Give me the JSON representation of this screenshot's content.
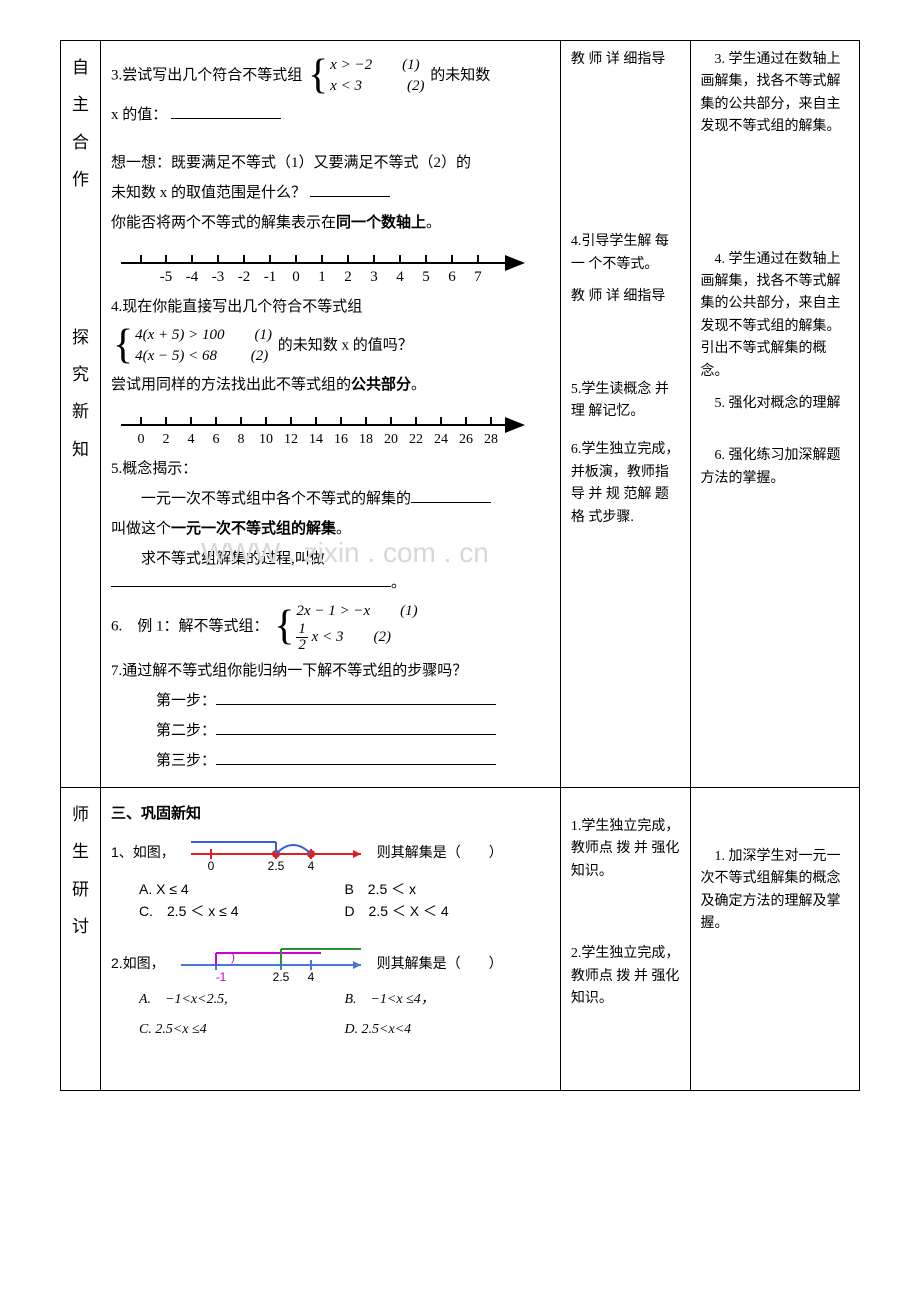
{
  "row1": {
    "label": "自\n主\n合\n作",
    "content": {
      "q3_prefix": "3.尝试写出几个符合不等式组",
      "sys1_l1": "x > −2　　(1)",
      "sys1_l2": "x < 3　　　(2)",
      "q3_suffix": "的未知数",
      "q3_line2": "x 的值：",
      "think_l1": "想一想：既要满足不等式（1）又要满足不等式（2）的",
      "think_l2": "未知数 x 的取值范围是什么？",
      "think_l3_a": "你能否将两个不等式的解集表示在",
      "think_l3_b": "同一个数轴上",
      "think_l3_c": "。"
    },
    "method": "教 师 详 细指导",
    "intent": "　3. 学生通过在数轴上画解集，找各不等式解集的公共部分，来自主发现不等式组的解集。",
    "numline1": {
      "labels": [
        "-5",
        "-4",
        "-3",
        "-2",
        "-1",
        "0",
        "1",
        "2",
        "3",
        "4",
        "5",
        "6",
        "7"
      ]
    }
  },
  "row2": {
    "label": "探\n究\n新\n知",
    "content": {
      "q4_l1": "4.现在你能直接写出几个符合不等式组",
      "sys2_l1": "4(x + 5) > 100　　(1)",
      "sys2_l2": "4(x − 5) < 68　　 (2)",
      "q4_l2": "的未知数 x 的值吗？",
      "q4_l3_a": "尝试用同样的方法找出此不等式组的",
      "q4_l3_b": "公共部分",
      "q4_l3_c": "。",
      "q5_l1": "5.概念揭示：",
      "q5_l2": "一元一次不等式组中各个不等式的解集的",
      "q5_l3_a": "叫做这个",
      "q5_l3_b": "一元一次不等式组的解集",
      "q5_l3_c": "。",
      "q5_l4": "求不等式组解集的过程,叫做",
      "q5_l4_end": "。",
      "q6_l1": "6.　例 1：解不等式组：",
      "sys3_l1": "2x − 1 > −x　　(1)",
      "sys3_l2_a": "1",
      "sys3_l2_b": "2",
      "sys3_l2_c": "x < 3　　(2)",
      "q7": "7.通过解不等式组你能归纳一下解不等式组的步骤吗？",
      "step1": "第一步：",
      "step2": "第二步：",
      "step3": "第三步："
    },
    "numline2": {
      "labels": [
        "0",
        "2",
        "4",
        "6",
        "8",
        "10",
        "12",
        "14",
        "16",
        "18",
        "20",
        "22",
        "24",
        "26",
        "28"
      ]
    },
    "method": {
      "m4a": "4.引导学生解 每 一 个不等式。",
      "m4b": "教 师 详 细指导",
      "m5": "5.学生读概念 并 理 解记忆。",
      "m6": "6.学生独立完成，并板演，教师指导 并 规 范解 题 格 式步骤."
    },
    "intent": {
      "i4": "　4. 学生通过在数轴上画解集，找各不等式解集的公共部分，来自主发现不等式组的解集。引出不等式解集的概念。",
      "i5": "　5. 强化对概念的理解",
      "i6": "　6. 强化练习加深解题方法的掌握。"
    }
  },
  "row3": {
    "label": "师\n生\n研\n讨",
    "heading": "三、巩固新知",
    "q1": {
      "stem_a": "1、如图，",
      "stem_b": "则其解集是（　　）",
      "optA": "A. X ≤ 4",
      "optB": "B　2.5 ＜ x",
      "optC": "C.　2.5 ＜ x ≤ 4",
      "optD": "D　2.5 ＜ X ＜ 4",
      "fig": {
        "zero": "0",
        "a": "2.5",
        "b": "4"
      }
    },
    "q2": {
      "stem_a": "2.如图，",
      "stem_b": "则其解集是（　　）",
      "optA": "A.　−1<x<2.5,",
      "optB": "B.　−1<x ≤4，",
      "optC": "C.  2.5<x ≤4",
      "optD": "D.  2.5<x<4",
      "fig": {
        "m1": "-1",
        "a": "2.5",
        "b": "4"
      }
    },
    "method": {
      "m1": "1.学生独立完成，教师点 拨 并 强化知识。",
      "m2": "2.学生独立完成，教师点 拨 并 强化知识。"
    },
    "intent": "　1. 加深学生对一元一次不等式组解集的概念及确定方法的理解及掌握。"
  },
  "watermark": "WWW . zixin . com . cn"
}
